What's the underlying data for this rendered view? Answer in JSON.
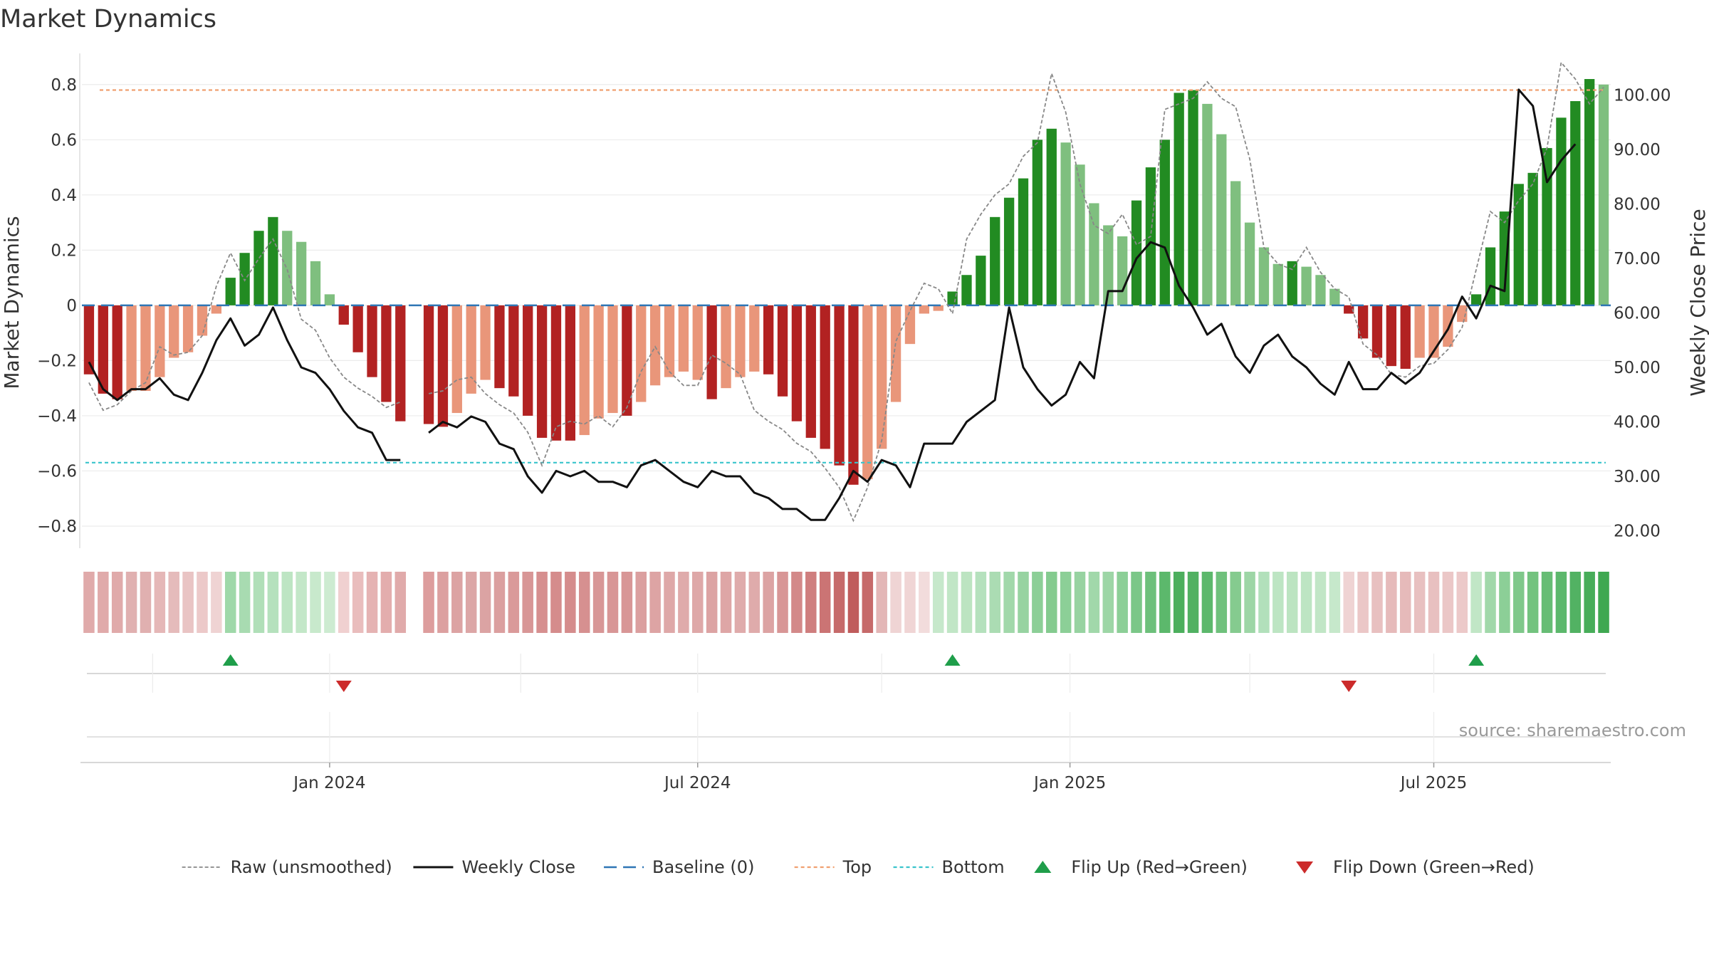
{
  "chart_data": {
    "type": "bar",
    "title": "Market Dynamics",
    "ylabel_left": "Market Dynamics",
    "ylabel_right": "Weekly Close Price",
    "source_text": "source: sharemaestro.com",
    "ylim_left": [
      -0.88,
      0.9
    ],
    "yticks_left": [
      0.8,
      0.6,
      0.4,
      0.2,
      0,
      -0.2,
      -0.4,
      -0.6,
      -0.8
    ],
    "ytick_labels_left": [
      "0.8",
      "0.6",
      "0.4",
      "0.2",
      "0",
      "−0.2",
      "−0.4",
      "−0.6",
      "−0.8"
    ],
    "ylim_right": [
      16.8,
      107.0
    ],
    "yticks_right": [
      100,
      90,
      80,
      70,
      60,
      50,
      40,
      30,
      20
    ],
    "ytick_labels_right": [
      "100.00",
      "90.00",
      "80.00",
      "70.00",
      "60.00",
      "50.00",
      "40.00",
      "30.00",
      "20.00"
    ],
    "x_tick_labels": [
      "Jan 2024",
      "Jul 2024",
      "Jan 2025",
      "Jul 2025"
    ],
    "x_tick_weeks": [
      17,
      43,
      69.3,
      95
    ],
    "week_count": 108,
    "gap_weeks": [
      23
    ],
    "top_line": 0.78,
    "bottom_line": -0.57,
    "baseline": 0,
    "values": [
      -0.25,
      -0.32,
      -0.34,
      -0.31,
      -0.31,
      -0.26,
      -0.19,
      -0.17,
      -0.11,
      -0.03,
      0.1,
      0.19,
      0.27,
      0.32,
      0.27,
      0.23,
      0.16,
      0.04,
      -0.07,
      -0.17,
      -0.26,
      -0.35,
      -0.42,
      null,
      -0.43,
      -0.44,
      -0.39,
      -0.32,
      -0.27,
      -0.3,
      -0.33,
      -0.4,
      -0.48,
      -0.49,
      -0.49,
      -0.47,
      -0.41,
      -0.39,
      -0.4,
      -0.35,
      -0.29,
      -0.26,
      -0.24,
      -0.27,
      -0.34,
      -0.3,
      -0.26,
      -0.24,
      -0.25,
      -0.33,
      -0.42,
      -0.48,
      -0.52,
      -0.58,
      -0.65,
      -0.63,
      -0.52,
      -0.35,
      -0.14,
      -0.03,
      -0.02,
      0.05,
      0.11,
      0.18,
      0.32,
      0.39,
      0.46,
      0.6,
      0.64,
      0.59,
      0.51,
      0.37,
      0.29,
      0.25,
      0.38,
      0.5,
      0.6,
      0.77,
      0.78,
      0.73,
      0.62,
      0.45,
      0.3,
      0.21,
      0.15,
      0.16,
      0.14,
      0.11,
      0.06,
      -0.03,
      -0.12,
      -0.19,
      -0.22,
      -0.23,
      -0.19,
      -0.19,
      -0.15,
      -0.06,
      0.04,
      0.21,
      0.34,
      0.44,
      0.48,
      0.57,
      0.68,
      0.74,
      0.82,
      0.8
    ],
    "bar_category": [
      0,
      0,
      0,
      1,
      1,
      1,
      1,
      1,
      1,
      1,
      2,
      2,
      2,
      2,
      3,
      3,
      3,
      3,
      0,
      0,
      0,
      0,
      0,
      null,
      0,
      0,
      1,
      1,
      1,
      0,
      0,
      0,
      0,
      0,
      0,
      1,
      1,
      1,
      0,
      1,
      1,
      1,
      1,
      1,
      0,
      1,
      1,
      1,
      0,
      0,
      0,
      0,
      0,
      0,
      0,
      1,
      1,
      1,
      1,
      1,
      1,
      2,
      2,
      2,
      2,
      2,
      2,
      2,
      2,
      3,
      3,
      3,
      3,
      3,
      2,
      2,
      2,
      2,
      2,
      3,
      3,
      3,
      3,
      3,
      3,
      2,
      3,
      3,
      3,
      0,
      0,
      0,
      0,
      0,
      1,
      1,
      1,
      1,
      2,
      2,
      2,
      2,
      2,
      2,
      2,
      2,
      2,
      3
    ],
    "bar_category_colors": [
      "#b22222",
      "#e9967a",
      "#228b22",
      "#7fbf7f"
    ],
    "weekly_close": [
      51,
      46,
      44,
      46,
      46,
      48,
      45,
      44,
      49,
      55,
      59,
      54,
      56,
      61,
      55,
      50,
      49,
      46,
      42,
      39,
      38,
      33,
      33,
      null,
      38,
      40,
      39,
      41,
      40,
      36,
      35,
      30,
      27,
      31,
      30,
      31,
      29,
      29,
      28,
      32,
      33,
      31,
      29,
      28,
      31,
      30,
      30,
      27,
      26,
      24,
      24,
      22,
      22,
      26,
      31,
      29,
      33,
      32,
      28,
      36,
      36,
      36,
      40,
      42,
      44,
      61,
      50,
      46,
      43,
      45,
      51,
      48,
      64,
      64,
      70,
      73,
      72,
      65,
      61,
      56,
      58,
      52,
      49,
      54,
      56,
      52,
      50,
      47,
      45,
      51,
      46,
      46,
      49,
      47,
      49,
      53,
      57,
      63,
      59,
      65,
      64,
      101,
      98,
      84,
      88,
      91
    ],
    "raw_unsmoothed": [
      -0.28,
      -0.38,
      -0.36,
      -0.31,
      -0.28,
      -0.15,
      -0.18,
      -0.17,
      -0.11,
      0.07,
      0.19,
      0.09,
      0.17,
      0.24,
      0.13,
      -0.05,
      -0.09,
      -0.19,
      -0.26,
      -0.3,
      -0.33,
      -0.37,
      -0.35,
      null,
      -0.32,
      -0.31,
      -0.27,
      -0.26,
      -0.32,
      -0.36,
      -0.39,
      -0.46,
      -0.58,
      -0.44,
      -0.42,
      -0.43,
      -0.4,
      -0.44,
      -0.37,
      -0.24,
      -0.15,
      -0.24,
      -0.29,
      -0.29,
      -0.18,
      -0.21,
      -0.25,
      -0.38,
      -0.42,
      -0.45,
      -0.5,
      -0.53,
      -0.59,
      -0.66,
      -0.78,
      -0.66,
      -0.49,
      -0.13,
      -0.02,
      0.08,
      0.06,
      -0.03,
      0.24,
      0.33,
      0.4,
      0.44,
      0.54,
      0.59,
      0.84,
      0.7,
      0.44,
      0.29,
      0.26,
      0.33,
      0.22,
      0.25,
      0.71,
      0.73,
      0.75,
      0.81,
      0.75,
      0.72,
      0.53,
      0.21,
      0.15,
      0.13,
      0.21,
      0.12,
      0.06,
      0.03,
      -0.14,
      -0.18,
      -0.25,
      -0.26,
      -0.22,
      -0.21,
      -0.16,
      -0.08,
      0.13,
      0.34,
      0.3,
      0.38,
      0.44,
      0.57,
      0.88,
      0.82,
      0.73,
      0.79
    ],
    "regime_strip_colors": [
      "#e0aaaa",
      "#e0aaaa",
      "#e0aaaa",
      "#e0b0b0",
      "#e0b0b0",
      "#e5b7b7",
      "#e5bbbb",
      "#e9c4c4",
      "#ecc9c9",
      "#efd3d3",
      "#9fd8a9",
      "#a8dbb1",
      "#b0dfb8",
      "#b5e1bd",
      "#bde5c3",
      "#c3e7c8",
      "#c8e9cc",
      "#cdebd1",
      "#f0d0d0",
      "#e9bdbd",
      "#e5b3b3",
      "#e3adad",
      "#e0aaaa",
      null,
      "#dd9d9d",
      "#dca0a0",
      "#dca3a3",
      "#dca6a6",
      "#dba3a3",
      "#db9f9f",
      "#da9a9a",
      "#d89696",
      "#d68f8f",
      "#d58c8c",
      "#d58c8c",
      "#d69090",
      "#d89696",
      "#d89696",
      "#d89696",
      "#db9f9f",
      "#dda4a4",
      "#dea8a8",
      "#dfabab",
      "#dea8a8",
      "#dca3a3",
      "#dea6a6",
      "#dfabab",
      "#dfabab",
      "#dca3a3",
      "#d89696",
      "#d38989",
      "#cf7e7e",
      "#cb7474",
      "#c66a6a",
      "#c05c5c",
      "#c66a6a",
      "#e3b6b6",
      "#efd4d4",
      "#f0d5d5",
      "#f2dcdc",
      "#c6e8cb",
      "#c1e6c6",
      "#bce4c1",
      "#b5e1bd",
      "#abdcb3",
      "#a1d8aa",
      "#97d3a1",
      "#8ccf97",
      "#84cb8f",
      "#8ccf97",
      "#97d3a1",
      "#a1d8aa",
      "#9dd6a6",
      "#8ccf97",
      "#7bc788",
      "#6dc07b",
      "#5cb86c",
      "#4caf5d",
      "#51b162",
      "#5cb86c",
      "#6fc17c",
      "#85cb8f",
      "#9dd6a6",
      "#b2e0bb",
      "#bde5c3",
      "#bce4c1",
      "#bde5c3",
      "#c1e6c6",
      "#c6e8cb",
      "#efd3d3",
      "#ebc7c7",
      "#e8c0c0",
      "#e6baba",
      "#e6baba",
      "#e8c0c0",
      "#e8c0c0",
      "#ebc7c7",
      "#ecc9c9",
      "#c1e6c6",
      "#a1d8aa",
      "#8ccf97",
      "#7fc88a",
      "#73c37f",
      "#67bd75",
      "#5cb86c",
      "#52b263",
      "#47ad59",
      "#3fa851"
    ],
    "flip_up_weeks": [
      10,
      61,
      98
    ],
    "flip_down_weeks": [
      18,
      89
    ],
    "flip_up_color": "#1f9e4a",
    "flip_down_color": "#cc2b2b",
    "colors": {
      "top": "#f0a070",
      "bottom": "#39c4cc",
      "baseline": "#2f76b5",
      "close": "#111111",
      "raw": "#888888"
    },
    "legend": [
      {
        "label": "Raw (unsmoothed)",
        "kind": "raw"
      },
      {
        "label": "Weekly Close",
        "kind": "close"
      },
      {
        "label": "Baseline (0)",
        "kind": "baseline"
      },
      {
        "label": "Top",
        "kind": "top"
      },
      {
        "label": "Bottom",
        "kind": "bottom"
      },
      {
        "label": "Flip Up (Red→Green)",
        "kind": "flipup"
      },
      {
        "label": "Flip Down (Green→Red)",
        "kind": "flipdown"
      }
    ]
  }
}
